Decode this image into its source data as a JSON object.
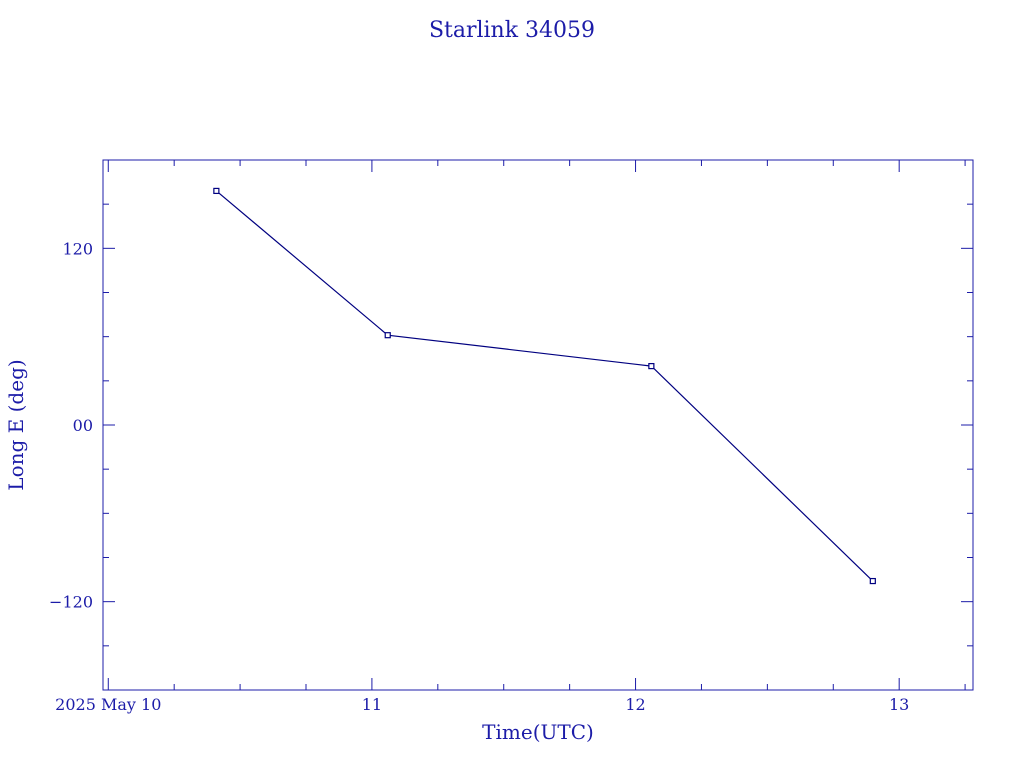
{
  "chart_data": {
    "type": "line",
    "title": "Starlink 34059",
    "xlabel": "Time(UTC)",
    "ylabel": "Long E (deg)",
    "x_unit": "days of May 2025 (UTC)",
    "xlim": [
      9.98,
      13.28
    ],
    "ylim": [
      -180,
      180
    ],
    "x_ticks": [
      {
        "value": 10,
        "label": "2025 May 10"
      },
      {
        "value": 11,
        "label": "11"
      },
      {
        "value": 12,
        "label": "12"
      },
      {
        "value": 13,
        "label": "13"
      }
    ],
    "x_minor_step": 0.25,
    "y_ticks": [
      {
        "value": 120,
        "label": "120"
      },
      {
        "value": 0,
        "label": "00"
      },
      {
        "value": -120,
        "label": "−120"
      }
    ],
    "y_minor_step": 30,
    "grid": false,
    "legend": "none",
    "series": [
      {
        "x": [
          10.41,
          11.06,
          12.06,
          12.9
        ],
        "y": [
          159,
          61,
          40,
          -106
        ],
        "marker": "square"
      }
    ],
    "color": "#1c1ca8",
    "line_color": "#000080"
  }
}
